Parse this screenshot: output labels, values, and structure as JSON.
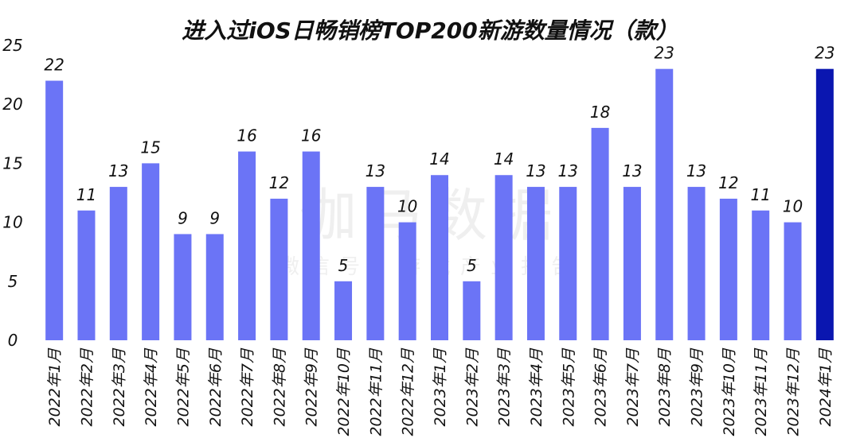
{
  "chart_data": {
    "type": "bar",
    "title": "进入过iOS日畅销榜TOP200新游数量情况（款）",
    "categories": [
      "2022年1月",
      "2022年2月",
      "2022年3月",
      "2022年4月",
      "2022年5月",
      "2022年6月",
      "2022年7月",
      "2022年8月",
      "2022年9月",
      "2022年10月",
      "2022年11月",
      "2022年12月",
      "2023年1月",
      "2023年2月",
      "2023年3月",
      "2023年4月",
      "2023年5月",
      "2023年6月",
      "2023年7月",
      "2023年8月",
      "2023年9月",
      "2023年10月",
      "2023年11月",
      "2023年12月",
      "2024年1月"
    ],
    "values": [
      22,
      11,
      13,
      15,
      9,
      9,
      16,
      12,
      16,
      5,
      13,
      10,
      14,
      5,
      14,
      13,
      13,
      18,
      13,
      23,
      13,
      12,
      11,
      10,
      23
    ],
    "ylim": [
      0,
      25
    ],
    "yticks": [
      0,
      5,
      10,
      15,
      20,
      25
    ],
    "grid": false,
    "legend": "none",
    "data_labels": true,
    "colors": {
      "bar": "#6b74f6",
      "highlight": "#0a16b0",
      "text": "#111111"
    },
    "highlight_index": 24
  },
  "watermark": {
    "main": "伽马数据",
    "sub": "微信号：游戏产业报告"
  }
}
